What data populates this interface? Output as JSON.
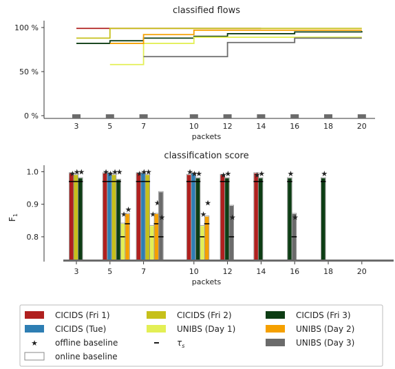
{
  "chart_data": [
    {
      "type": "line",
      "title": "classified flows",
      "xlabel": "packets",
      "ylabel": "",
      "x_ticks": [
        3,
        5,
        7,
        10,
        12,
        14,
        16,
        18,
        20
      ],
      "x_tick_labels": [
        "3",
        "5",
        "7",
        "10",
        "12",
        "14",
        "16",
        "18",
        "20"
      ],
      "y_ticks": [
        0,
        50,
        100
      ],
      "y_tick_labels": [
        "0 %",
        "50 %",
        "100 %"
      ],
      "ylim": [
        0,
        100
      ],
      "grid": false,
      "series": [
        {
          "name": "CICIDS (Fri 1)",
          "color": "#b0201f",
          "points": [
            [
              3,
              99
            ],
            [
              5,
              99
            ],
            [
              14,
              99
            ]
          ]
        },
        {
          "name": "CICIDS (Fri 2)",
          "color": "#c6c01a",
          "points": [
            [
              3,
              88
            ],
            [
              5,
              99
            ],
            [
              20,
              99
            ]
          ]
        },
        {
          "name": "CICIDS (Fri 3)",
          "color": "#0d3d14",
          "points": [
            [
              3,
              82
            ],
            [
              5,
              85
            ],
            [
              7,
              88
            ],
            [
              10,
              90
            ],
            [
              12,
              93
            ],
            [
              16,
              95
            ],
            [
              20,
              96
            ]
          ]
        },
        {
          "name": "UNIBS (Day 1)",
          "color": "#e3ef55",
          "points": [
            [
              5,
              58
            ],
            [
              7,
              82
            ],
            [
              10,
              89
            ],
            [
              20,
              89
            ]
          ]
        },
        {
          "name": "UNIBS (Day 2)",
          "color": "#f5a000",
          "points": [
            [
              5,
              82
            ],
            [
              7,
              92
            ],
            [
              10,
              97
            ],
            [
              20,
              97
            ]
          ]
        },
        {
          "name": "UNIBS (Day 3)",
          "color": "#6b6b6b",
          "points": [
            [
              7,
              67
            ],
            [
              12,
              83
            ],
            [
              16,
              88
            ],
            [
              20,
              88
            ]
          ]
        }
      ]
    },
    {
      "type": "bar",
      "title": "classification score",
      "xlabel": "packets",
      "ylabel": "F",
      "ylabel_sub": "1",
      "x_ticks": [
        3,
        5,
        7,
        10,
        12,
        14,
        16,
        18,
        20
      ],
      "x_tick_labels": [
        "3",
        "5",
        "7",
        "10",
        "12",
        "14",
        "16",
        "18",
        "20"
      ],
      "y_ticks": [
        0.8,
        0.9,
        1.0
      ],
      "y_tick_labels": [
        "0.8",
        "0.9",
        "1.0"
      ],
      "ylim": [
        0.73,
        1.02
      ],
      "grid": false,
      "series_order": [
        "CICIDS (Fri 1)",
        "CICIDS (Tue)",
        "CICIDS (Fri 2)",
        "UNIBS (Day 1)",
        "CICIDS (Fri 3)",
        "UNIBS (Day 2)",
        "UNIBS (Day 3)"
      ],
      "groups": [
        {
          "x": 3,
          "bars": [
            {
              "series": "CICIDS (Fri 1)",
              "value": 0.995,
              "offline": 0.995,
              "threshold": 0.97
            },
            {
              "series": "CICIDS (Fri 2)",
              "value": 0.99,
              "offline": 1.0,
              "threshold": 0.97
            },
            {
              "series": "CICIDS (Fri 3)",
              "value": 0.98,
              "offline": 1.0,
              "threshold": 0.97
            }
          ]
        },
        {
          "x": 5,
          "bars": [
            {
              "series": "CICIDS (Fri 1)",
              "value": 0.995,
              "offline": 1.0,
              "threshold": 0.97
            },
            {
              "series": "CICIDS (Tue)",
              "value": 0.995,
              "offline": 0.995,
              "threshold": 0.97
            },
            {
              "series": "CICIDS (Fri 2)",
              "value": 0.99,
              "offline": 1.0,
              "threshold": 0.97
            },
            {
              "series": "CICIDS (Fri 3)",
              "value": 0.975,
              "offline": 1.0,
              "threshold": 0.97
            },
            {
              "series": "UNIBS (Day 1)",
              "value": 0.84,
              "offline": 0.87,
              "threshold": 0.8
            },
            {
              "series": "UNIBS (Day 2)",
              "value": 0.87,
              "offline": 0.885,
              "threshold": 0.84
            }
          ]
        },
        {
          "x": 7,
          "bars": [
            {
              "series": "CICIDS (Fri 1)",
              "value": 0.995,
              "offline": 0.995,
              "threshold": 0.97
            },
            {
              "series": "CICIDS (Tue)",
              "value": 0.995,
              "offline": 1.0,
              "threshold": 0.97
            },
            {
              "series": "CICIDS (Fri 2)",
              "value": 0.99,
              "offline": 1.0,
              "threshold": 0.97
            },
            {
              "series": "UNIBS (Day 1)",
              "value": 0.833,
              "offline": 0.87,
              "threshold": 0.8
            },
            {
              "series": "UNIBS (Day 2)",
              "value": 0.87,
              "offline": 0.905,
              "threshold": 0.84
            },
            {
              "series": "UNIBS (Day 3)",
              "value": 0.937,
              "offline": 0.86,
              "threshold": 0.8
            }
          ]
        },
        {
          "x": 10,
          "bars": [
            {
              "series": "CICIDS (Fri 1)",
              "value": 0.99,
              "offline": 1.0,
              "threshold": 0.97
            },
            {
              "series": "CICIDS (Tue)",
              "value": 0.995,
              "offline": 0.995,
              "threshold": 0.97
            },
            {
              "series": "CICIDS (Fri 3)",
              "value": 0.98,
              "offline": 0.995,
              "threshold": 0.97
            },
            {
              "series": "UNIBS (Day 1)",
              "value": 0.833,
              "offline": 0.87,
              "threshold": 0.8
            },
            {
              "series": "UNIBS (Day 2)",
              "value": 0.862,
              "offline": 0.905,
              "threshold": 0.84
            }
          ]
        },
        {
          "x": 12,
          "bars": [
            {
              "series": "CICIDS (Fri 1)",
              "value": 0.99,
              "offline": 0.99,
              "threshold": 0.97
            },
            {
              "series": "CICIDS (Fri 3)",
              "value": 0.98,
              "offline": 0.995,
              "threshold": 0.97
            },
            {
              "series": "UNIBS (Day 3)",
              "value": 0.895,
              "offline": 0.86,
              "threshold": 0.8
            }
          ]
        },
        {
          "x": 14,
          "bars": [
            {
              "series": "CICIDS (Fri 1)",
              "value": 0.995,
              "offline": 0.99,
              "threshold": 0.97
            },
            {
              "series": "CICIDS (Fri 3)",
              "value": 0.98,
              "offline": 0.995,
              "threshold": 0.97
            }
          ]
        },
        {
          "x": 16,
          "bars": [
            {
              "series": "CICIDS (Fri 3)",
              "value": 0.98,
              "offline": 0.995,
              "threshold": 0.97
            },
            {
              "series": "UNIBS (Day 3)",
              "value": 0.87,
              "offline": 0.86,
              "threshold": 0.8
            }
          ]
        },
        {
          "x": 18,
          "bars": [
            {
              "series": "CICIDS (Fri 3)",
              "value": 0.98,
              "offline": 0.995,
              "threshold": 0.97
            }
          ]
        }
      ]
    }
  ],
  "legend": {
    "items": [
      {
        "label": "CICIDS (Fri 1)",
        "kind": "patch",
        "color": "#b0201f"
      },
      {
        "label": "CICIDS (Fri 2)",
        "kind": "patch",
        "color": "#c6c01a"
      },
      {
        "label": "CICIDS (Fri 3)",
        "kind": "patch",
        "color": "#0d3d14"
      },
      {
        "label": "CICIDS (Tue)",
        "kind": "patch",
        "color": "#2e7eb3"
      },
      {
        "label": "UNIBS (Day 1)",
        "kind": "patch",
        "color": "#e3ef55"
      },
      {
        "label": "UNIBS (Day 2)",
        "kind": "patch",
        "color": "#f5a000"
      },
      {
        "label": "offline baseline",
        "kind": "star"
      },
      {
        "label": "τ",
        "sub": "s",
        "kind": "dash"
      },
      {
        "label": "UNIBS (Day 3)",
        "kind": "patch",
        "color": "#6b6b6b"
      },
      {
        "label": "online baseline",
        "kind": "hollow"
      }
    ]
  }
}
